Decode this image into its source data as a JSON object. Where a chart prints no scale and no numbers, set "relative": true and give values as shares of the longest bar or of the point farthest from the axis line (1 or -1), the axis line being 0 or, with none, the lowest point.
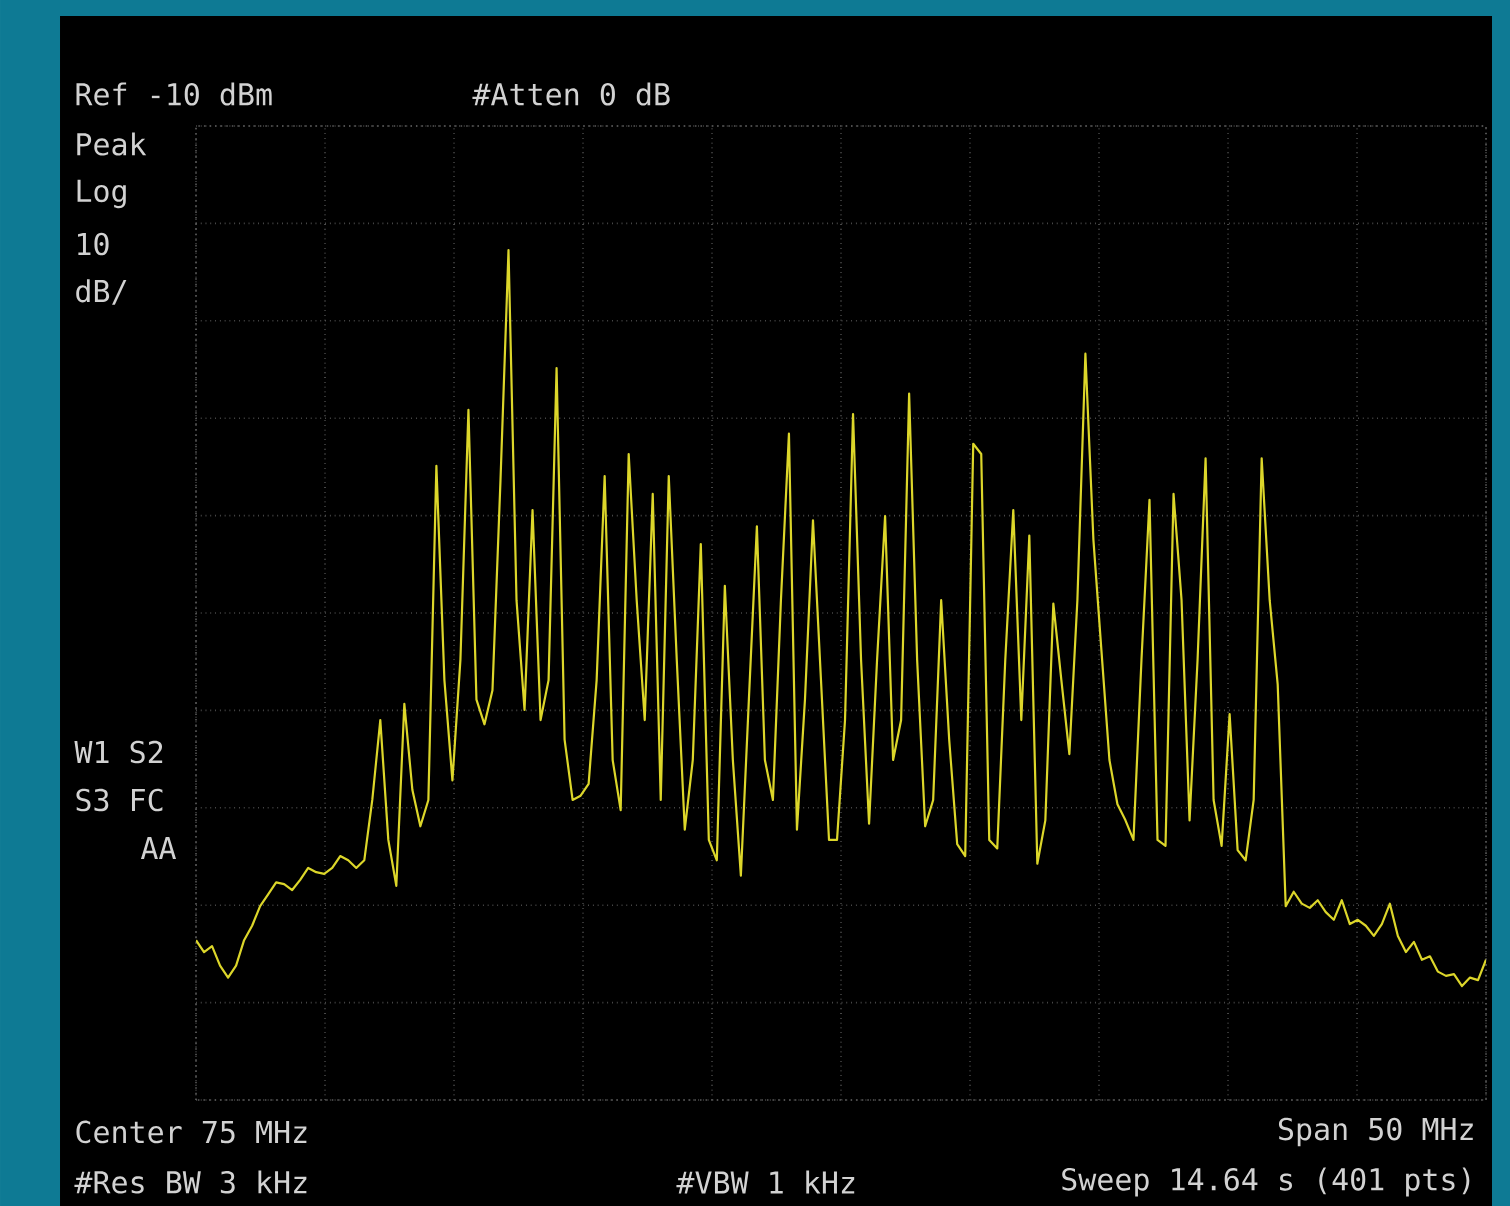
{
  "chart_data": {
    "type": "line",
    "relative": true,
    "categories": [
      null,
      null,
      null,
      null,
      null,
      null,
      null,
      null,
      null,
      null,
      null,
      null,
      null,
      null,
      null,
      null,
      null,
      null,
      null,
      null,
      null,
      null,
      null,
      null,
      null,
      null,
      null,
      null,
      null,
      null,
      null,
      null,
      null,
      null,
      null,
      null,
      null,
      null,
      null,
      null,
      null,
      null,
      null,
      null,
      null,
      null,
      null,
      null,
      null,
      null,
      null,
      null,
      null,
      null,
      null,
      null,
      null,
      null,
      null,
      null,
      null,
      null,
      null,
      null,
      null,
      null,
      null,
      null,
      null,
      null,
      null,
      null,
      null,
      null,
      null,
      null,
      null,
      null,
      null,
      null,
      null,
      null,
      null,
      null,
      null,
      null,
      null,
      null,
      null,
      null,
      null,
      null,
      null,
      null,
      null,
      null,
      null,
      null,
      null,
      null,
      null,
      null,
      null,
      null,
      null,
      null,
      null,
      null,
      null,
      null,
      null,
      null,
      null,
      null,
      null,
      null,
      null,
      null,
      null,
      null,
      null,
      null,
      null,
      null,
      null,
      null,
      null,
      null,
      null,
      null,
      null,
      null,
      null,
      null,
      null,
      null,
      null,
      null,
      null,
      null,
      null,
      null,
      null,
      null,
      null,
      null,
      null,
      null,
      null,
      null,
      null,
      null,
      null,
      null,
      null,
      null,
      null,
      null,
      null,
      null,
      null,
      null
    ],
    "grid": true,
    "marker": "none",
    "line_style": "solid",
    "annotations": [
      "Ref -10 dBm",
      "#Atten 0 dB",
      "Peak",
      "Log",
      "10",
      "dB/",
      "W1  S2",
      "S3 FC",
      "AA",
      "Center 75 MHz",
      "Span 50 MHz",
      "#Res BW 3 kHz",
      "#VBW 1 kHz",
      "Sweep 14.64 s (401 pts)"
    ],
    "series": [
      {
        "color": "#dcd62a",
        "values": [
          0.188,
          0.174,
          0.181,
          0.158,
          0.144,
          0.158,
          0.188,
          0.205,
          0.228,
          0.242,
          0.256,
          0.254,
          0.247,
          0.259,
          0.273,
          0.268,
          0.266,
          0.273,
          0.287,
          0.282,
          0.273,
          0.282,
          0.353,
          0.447,
          0.306,
          0.252,
          0.466,
          0.365,
          0.322,
          0.353,
          0.746,
          0.494,
          0.376,
          0.518,
          0.812,
          0.471,
          0.442,
          0.482,
          0.729,
          1,
          0.588,
          0.459,
          0.694,
          0.447,
          0.494,
          0.861,
          0.424,
          0.353,
          0.358,
          0.372,
          0.494,
          0.734,
          0.4,
          0.341,
          0.76,
          0.588,
          0.447,
          0.713,
          0.353,
          0.734,
          0.518,
          0.318,
          0.4,
          0.654,
          0.306,
          0.282,
          0.605,
          0.4,
          0.264,
          0.471,
          0.675,
          0.4,
          0.353,
          0.588,
          0.784,
          0.318,
          0.471,
          0.682,
          0.494,
          0.306,
          0.306,
          0.447,
          0.807,
          0.518,
          0.325,
          0.518,
          0.687,
          0.4,
          0.447,
          0.831,
          0.518,
          0.322,
          0.353,
          0.588,
          0.424,
          0.301,
          0.287,
          0.772,
          0.76,
          0.306,
          0.296,
          0.518,
          0.694,
          0.447,
          0.664,
          0.278,
          0.329,
          0.584,
          0.494,
          0.407,
          0.588,
          0.878,
          0.659,
          0.529,
          0.4,
          0.348,
          0.329,
          0.306,
          0.518,
          0.706,
          0.306,
          0.299,
          0.713,
          0.588,
          0.329,
          0.518,
          0.755,
          0.353,
          0.299,
          0.454,
          0.294,
          0.282,
          0.353,
          0.755,
          0.588,
          0.489,
          0.228,
          0.245,
          0.231,
          0.226,
          0.235,
          0.221,
          0.212,
          0.235,
          0.207,
          0.212,
          0.205,
          0.193,
          0.207,
          0.231,
          0.193,
          0.174,
          0.186,
          0.165,
          0.169,
          0.151,
          0.146,
          0.148,
          0.134,
          0.144,
          0.141,
          0.165
        ]
      }
    ]
  }
}
